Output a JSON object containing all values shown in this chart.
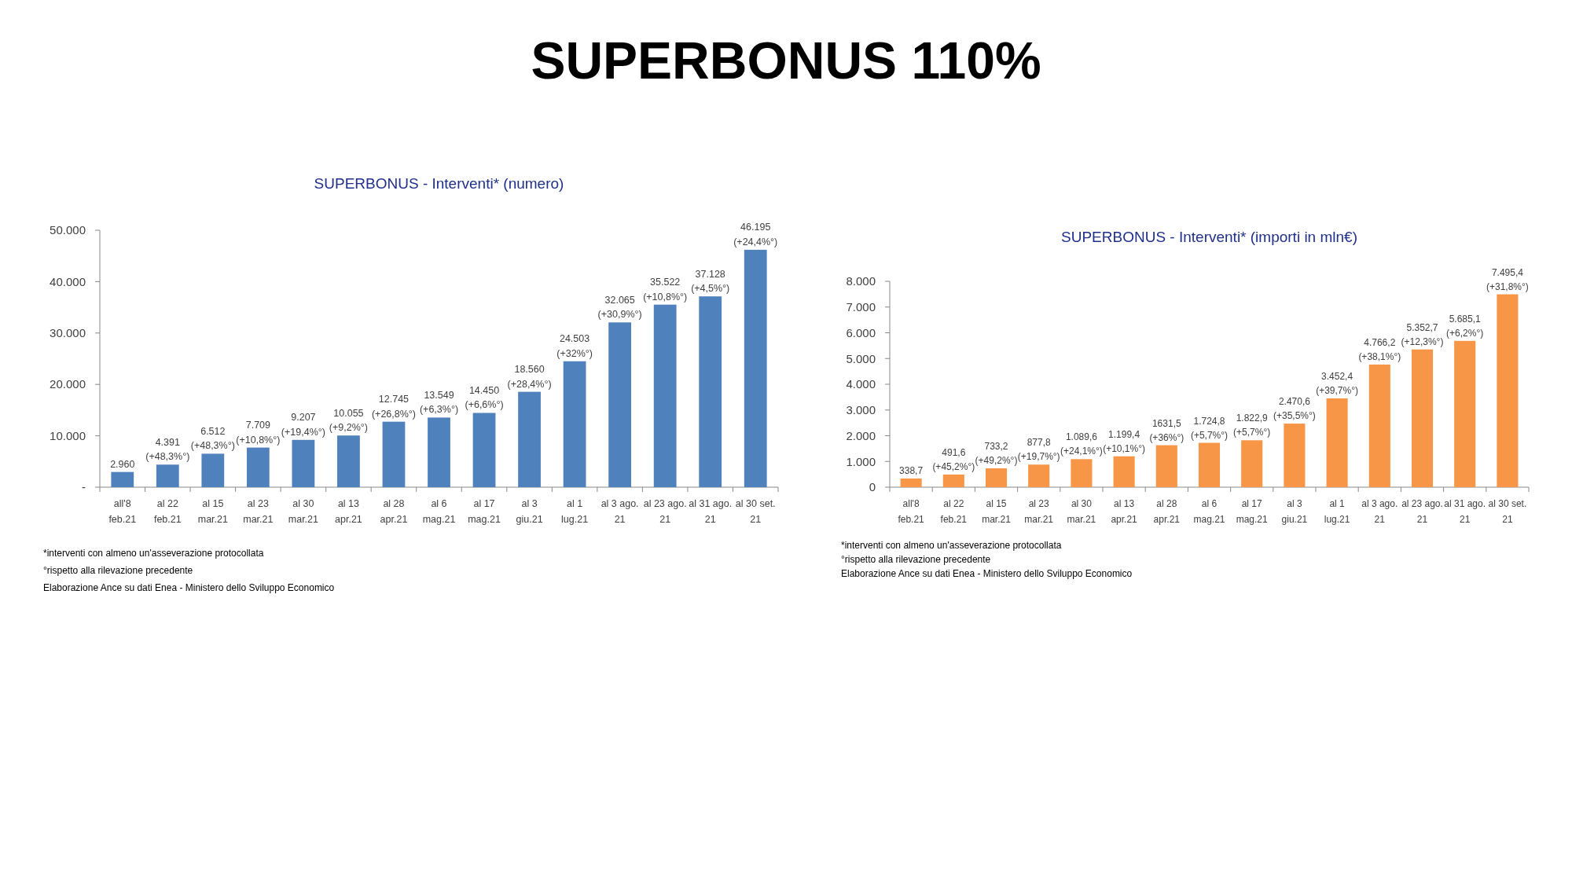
{
  "chart_data": [
    {
      "type": "other",
      "title": "SUPERBONUS 110%"
    },
    {
      "type": "bar",
      "title": "SUPERBONUS - Interventi* (numero)",
      "categories": [
        "all'8\nfeb.21",
        "al 22\nfeb.21",
        "al 15\nmar.21",
        "al 23\nmar.21",
        "al 30\nmar.21",
        "al 13\napr.21",
        "al 28\napr.21",
        "al 6\nmag.21",
        "al 17\nmag.21",
        "al 3\ngiu.21",
        "al 1\nlug.21",
        "al 3 ago.\n21",
        "al 23 ago.\n21",
        "al 31 ago.\n21",
        "al 30 set.\n21"
      ],
      "values": [
        2960,
        4391,
        6512,
        7709,
        9207,
        10055,
        12745,
        13549,
        14450,
        18560,
        24503,
        32065,
        35522,
        37128,
        46195
      ],
      "value_labels": [
        "2.960",
        "4.391\n(+48,3%°)",
        "6.512\n(+48,3%°)",
        "7.709\n(+10,8%°)",
        "9.207\n(+19,4%°)",
        "10.055\n(+9,2%°)",
        "12.745\n(+26,8%°)",
        "13.549\n(+6,3%°)",
        "14.450\n(+6,6%°)",
        "18.560\n(+28,4%°)",
        "24.503\n(+32%°)",
        "32.065\n(+30,9%°)",
        "35.522\n(+10,8%°)",
        "37.128\n(+4,5%°)",
        "46.195\n(+24,4%°)"
      ],
      "color": "#4f81bd",
      "ylim": [
        0,
        50000
      ],
      "yticks": [
        {
          "value": 0,
          "label": "-"
        },
        {
          "value": 10000,
          "label": "10.000"
        },
        {
          "value": 20000,
          "label": "20.000"
        },
        {
          "value": 30000,
          "label": "30.000"
        },
        {
          "value": 40000,
          "label": "40.000"
        },
        {
          "value": 50000,
          "label": "50.000"
        }
      ],
      "annotations": [
        "*interventi con almeno un'asseverazione protocollata",
        "°rispetto alla rilevazione precedente",
        "Elaborazione Ance su dati Enea - Ministero dello Sviluppo Economico"
      ]
    },
    {
      "type": "bar",
      "title": "SUPERBONUS - Interventi* (importi in mln€)",
      "categories": [
        "all'8\nfeb.21",
        "al 22\nfeb.21",
        "al 15\nmar.21",
        "al 23\nmar.21",
        "al 30\nmar.21",
        "al 13\napr.21",
        "al 28\napr.21",
        "al 6\nmag.21",
        "al 17\nmag.21",
        "al 3\ngiu.21",
        "al 1\nlug.21",
        "al 3 ago.\n21",
        "al 23 ago.\n21",
        "al 31 ago.\n21",
        "al 30 set.\n21"
      ],
      "values": [
        338.7,
        491.6,
        733.2,
        877.8,
        1089.6,
        1199.4,
        1631.5,
        1724.8,
        1822.9,
        2470.6,
        3452.4,
        4766.2,
        5352.7,
        5685.1,
        7495.4
      ],
      "value_labels": [
        "338,7",
        "491,6\n(+45,2%°)",
        "733,2\n(+49,2%°)",
        "877,8\n(+19,7%°)",
        "1.089,6\n(+24,1%°)",
        "1.199,4\n(+10,1%°)",
        "1631,5\n(+36%°)",
        "1.724,8\n(+5,7%°)",
        "1.822,9\n(+5,7%°)",
        "2.470,6\n(+35,5%°)",
        "3.452,4\n(+39,7%°)",
        "4.766,2\n(+38,1%°)",
        "5.352,7\n(+12,3%°)",
        "5.685,1\n(+6,2%°)",
        "7.495,4\n(+31,8%°)"
      ],
      "color": "#f79646",
      "ylim": [
        0,
        8000
      ],
      "yticks": [
        {
          "value": 0,
          "label": "0"
        },
        {
          "value": 1000,
          "label": "1.000"
        },
        {
          "value": 2000,
          "label": "2.000"
        },
        {
          "value": 3000,
          "label": "3.000"
        },
        {
          "value": 4000,
          "label": "4.000"
        },
        {
          "value": 5000,
          "label": "5.000"
        },
        {
          "value": 6000,
          "label": "6.000"
        },
        {
          "value": 7000,
          "label": "7.000"
        },
        {
          "value": 8000,
          "label": "8.000"
        }
      ],
      "annotations": [
        "*interventi con almeno un'asseverazione protocollata",
        "°rispetto alla rilevazione precedente",
        "Elaborazione Ance su dati Enea - Ministero dello Sviluppo Economico"
      ]
    }
  ]
}
